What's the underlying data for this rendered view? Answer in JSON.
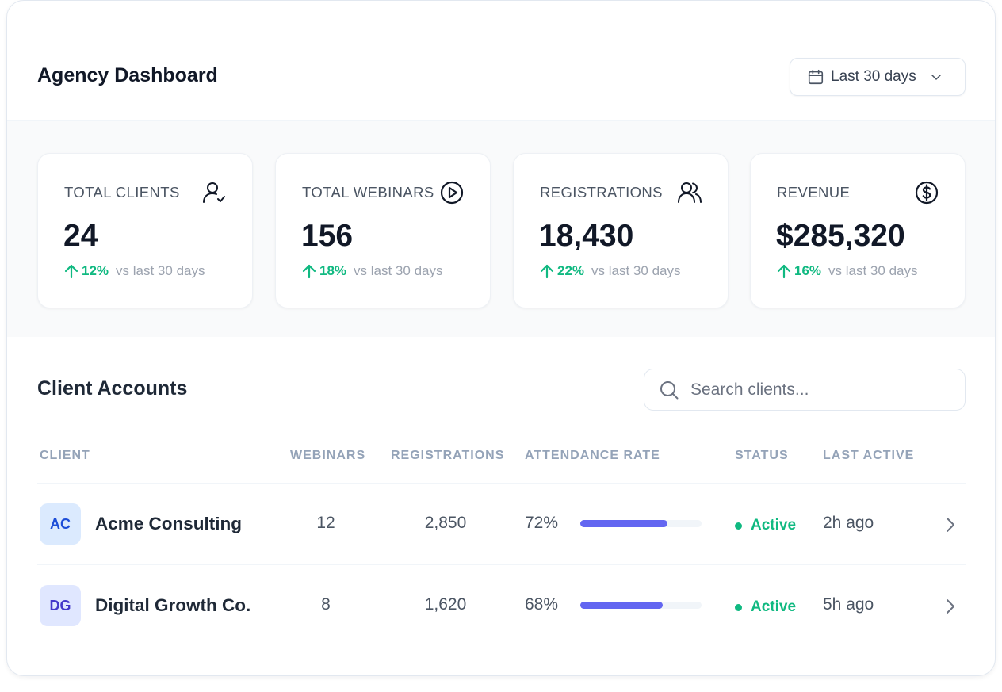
{
  "header": {
    "title": "Agency Dashboard",
    "range_label": "Last 30 days"
  },
  "stats": [
    {
      "label": "TOTAL CLIENTS",
      "value": "24",
      "change": "12%",
      "comparison": "vs last 30 days",
      "icon": "user-check-icon"
    },
    {
      "label": "TOTAL WEBINARS",
      "value": "156",
      "change": "18%",
      "comparison": "vs last 30 days",
      "icon": "play-circle-icon"
    },
    {
      "label": "REGISTRATIONS",
      "value": "18,430",
      "change": "22%",
      "comparison": "vs last 30 days",
      "icon": "users-icon"
    },
    {
      "label": "REVENUE",
      "value": "$285,320",
      "change": "16%",
      "comparison": "vs last 30 days",
      "icon": "dollar-circle-icon"
    }
  ],
  "clients_section": {
    "title": "Client Accounts",
    "search_placeholder": "Search clients..."
  },
  "table": {
    "columns": [
      "CLIENT",
      "WEBINARS",
      "REGISTRATIONS",
      "ATTENDANCE RATE",
      "STATUS",
      "LAST ACTIVE"
    ],
    "rows": [
      {
        "initials": "AC",
        "name": "Acme Consulting",
        "webinars": "12",
        "registrations": "2,850",
        "attendance": "72%",
        "attendance_value": 0.72,
        "status": "Active",
        "last_active": "2h ago"
      },
      {
        "initials": "DG",
        "name": "Digital Growth Co.",
        "webinars": "8",
        "registrations": "1,620",
        "attendance": "68%",
        "attendance_value": 0.68,
        "status": "Active",
        "last_active": "5h ago"
      }
    ]
  },
  "colors": {
    "accent": "#6366f1",
    "positive": "#10b981",
    "avatar_ac_bg": "#dbeafe",
    "avatar_ac_fg": "#1d4ed8",
    "avatar_dg_bg": "#e0e7ff",
    "avatar_dg_fg": "#4338ca"
  }
}
